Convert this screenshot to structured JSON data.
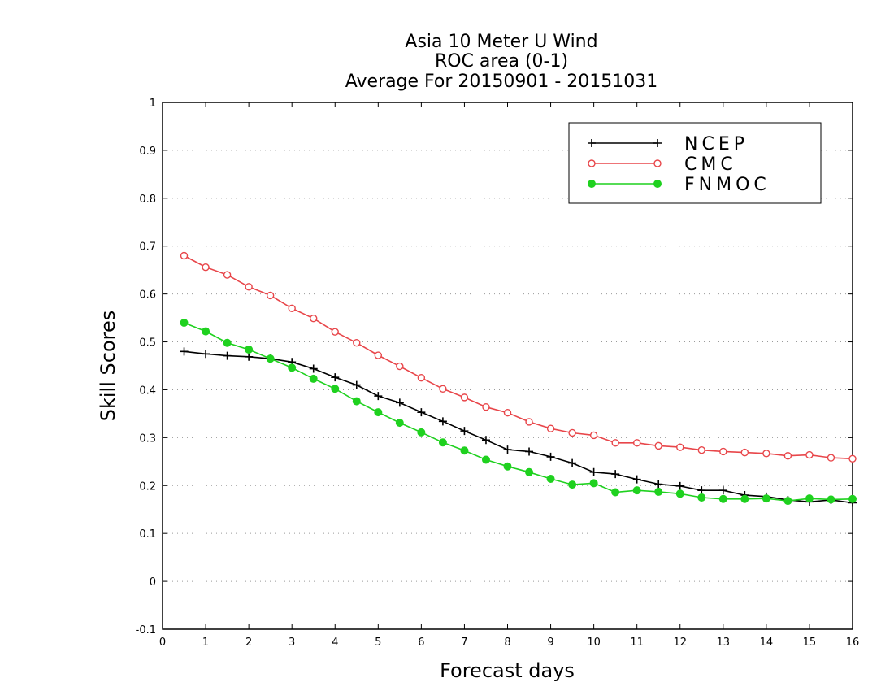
{
  "chart_data": {
    "type": "line",
    "title_lines": [
      "Asia 10 Meter U Wind",
      "ROC area (0-1)",
      "Average For 20150901 - 20151031"
    ],
    "xlabel": "Forecast days",
    "ylabel": "Skill Scores",
    "xlim": [
      0,
      16
    ],
    "ylim": [
      -0.1,
      1
    ],
    "x_ticks": [
      0,
      1,
      2,
      3,
      4,
      5,
      6,
      7,
      8,
      9,
      10,
      11,
      12,
      13,
      14,
      15,
      16
    ],
    "y_ticks": [
      -0.1,
      0,
      0.1,
      0.2,
      0.3,
      0.4,
      0.5,
      0.6,
      0.7,
      0.8,
      0.9,
      1
    ],
    "y_tick_labels": [
      "-0.1",
      "0",
      "0.1",
      "0.2",
      "0.3",
      "0.4",
      "0.5",
      "0.6",
      "0.7",
      "0.8",
      "0.9",
      "1"
    ],
    "grid": true,
    "legend_position": "top-right",
    "x": [
      0.5,
      1,
      1.5,
      2,
      2.5,
      3,
      3.5,
      4,
      4.5,
      5,
      5.5,
      6,
      6.5,
      7,
      7.5,
      8,
      8.5,
      9,
      9.5,
      10,
      10.5,
      11,
      11.5,
      12,
      12.5,
      13,
      13.5,
      14,
      14.5,
      15,
      15.5,
      16
    ],
    "series": [
      {
        "name": "NCEP",
        "color": "#000000",
        "marker": "plus",
        "values": [
          0.48,
          0.475,
          0.471,
          0.469,
          0.465,
          0.458,
          0.444,
          0.426,
          0.41,
          0.387,
          0.373,
          0.353,
          0.334,
          0.314,
          0.295,
          0.275,
          0.271,
          0.26,
          0.247,
          0.228,
          0.224,
          0.213,
          0.203,
          0.199,
          0.19,
          0.19,
          0.18,
          0.177,
          0.17,
          0.166,
          0.17,
          0.164
        ]
      },
      {
        "name": "CMC",
        "color": "#e8464a",
        "marker": "open-circle",
        "values": [
          0.68,
          0.656,
          0.64,
          0.615,
          0.597,
          0.57,
          0.549,
          0.521,
          0.498,
          0.472,
          0.449,
          0.425,
          0.402,
          0.384,
          0.364,
          0.352,
          0.333,
          0.319,
          0.31,
          0.305,
          0.289,
          0.289,
          0.283,
          0.28,
          0.274,
          0.271,
          0.269,
          0.267,
          0.262,
          0.264,
          0.258,
          0.256
        ]
      },
      {
        "name": "FNMOC",
        "color": "#1fd11f",
        "marker": "filled-circle",
        "values": [
          0.54,
          0.522,
          0.498,
          0.484,
          0.465,
          0.446,
          0.423,
          0.402,
          0.376,
          0.353,
          0.331,
          0.311,
          0.29,
          0.273,
          0.254,
          0.24,
          0.228,
          0.214,
          0.202,
          0.205,
          0.186,
          0.19,
          0.187,
          0.183,
          0.175,
          0.172,
          0.172,
          0.173,
          0.168,
          0.173,
          0.171,
          0.172
        ]
      }
    ]
  }
}
